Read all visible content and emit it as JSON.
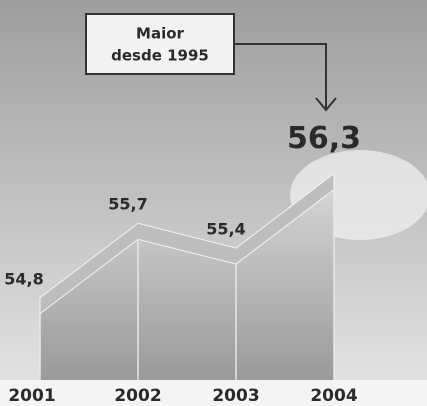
{
  "chart_data": {
    "type": "area",
    "annotation": [
      "Maior",
      "desde 1995"
    ],
    "categories": [
      "2001",
      "2002",
      "2003",
      "2004"
    ],
    "values": [
      54.8,
      55.7,
      55.4,
      56.3
    ],
    "value_labels": [
      "54,8",
      "55,7",
      "55,4",
      "56,3"
    ],
    "color": "#bdbdbd",
    "ylim": [
      54,
      56.5
    ]
  }
}
